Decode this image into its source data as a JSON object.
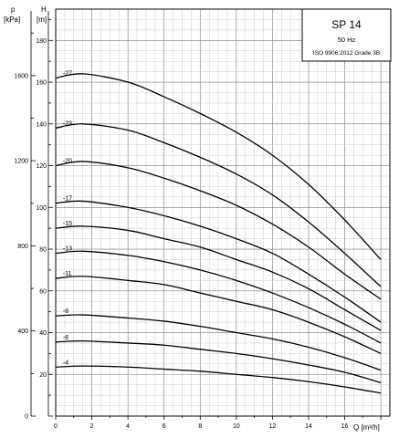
{
  "chart_data": {
    "type": "line",
    "title": "SP 14",
    "subtitle": "50 Hz",
    "standard": "ISO 9906:2012 Grade 3B",
    "xlabel": "Q [m³/h]",
    "ylabel_left_symbol": "p",
    "ylabel_left_unit": "[kPa]",
    "ylabel_right_symbol": "H",
    "ylabel_right_unit": "[m]",
    "xlim": [
      0,
      18.5
    ],
    "ylim_head": [
      0,
      195
    ],
    "x_ticks": [
      "0",
      "2",
      "4",
      "6",
      "8",
      "10",
      "12",
      "14",
      "16"
    ],
    "head_ticks": [
      "20",
      "40",
      "60",
      "80",
      "100",
      "120",
      "140",
      "160",
      "180"
    ],
    "pressure_ticks": [
      "0",
      "400",
      "800",
      "1200",
      "1600"
    ],
    "grid": true,
    "series": [
      {
        "name": "-27",
        "x": [
          0,
          1.5,
          4,
          6,
          8,
          10,
          12,
          14,
          16,
          18
        ],
        "y": [
          162,
          164,
          160,
          153,
          145,
          136,
          125,
          111,
          94,
          75
        ]
      },
      {
        "name": "-23",
        "x": [
          0,
          1.5,
          4,
          6,
          8,
          10,
          12,
          14,
          16,
          18
        ],
        "y": [
          138,
          140,
          137,
          131,
          124,
          116,
          106,
          93,
          78,
          62
        ]
      },
      {
        "name": "-20",
        "x": [
          0,
          1.5,
          4,
          6,
          8,
          10,
          12,
          14,
          16,
          18
        ],
        "y": [
          120,
          122,
          119,
          114,
          108,
          101,
          92,
          81,
          68,
          56
        ]
      },
      {
        "name": "-17",
        "x": [
          0,
          1.5,
          4,
          6,
          8,
          10,
          12,
          14,
          16,
          18
        ],
        "y": [
          102,
          103,
          100,
          96,
          91,
          85,
          78,
          68,
          57,
          45
        ]
      },
      {
        "name": "-15",
        "x": [
          0,
          1.5,
          4,
          6,
          8,
          10,
          12,
          14,
          16,
          18
        ],
        "y": [
          90,
          91,
          89,
          85,
          81,
          75,
          69,
          61,
          51,
          41
        ]
      },
      {
        "name": "-13",
        "x": [
          0,
          1.5,
          4,
          6,
          8,
          10,
          12,
          14,
          16,
          18
        ],
        "y": [
          78,
          79,
          77,
          74,
          70,
          65,
          59,
          52,
          44,
          35
        ]
      },
      {
        "name": "-11",
        "x": [
          0,
          1.5,
          4,
          6,
          8,
          10,
          12,
          14,
          16,
          18
        ],
        "y": [
          66,
          67,
          65,
          63,
          59,
          55,
          51,
          45,
          38,
          30
        ]
      },
      {
        "name": "-8",
        "x": [
          0,
          1.5,
          4,
          6,
          8,
          10,
          12,
          14,
          16,
          18
        ],
        "y": [
          48,
          48.5,
          47,
          45.5,
          43,
          40,
          37,
          33,
          28,
          22
        ]
      },
      {
        "name": "-6",
        "x": [
          0,
          1.5,
          4,
          6,
          8,
          10,
          12,
          14,
          16,
          18
        ],
        "y": [
          35.5,
          36,
          35,
          34,
          32,
          30,
          27.5,
          24.5,
          21,
          16
        ]
      },
      {
        "name": "-4",
        "x": [
          0,
          1.5,
          4,
          6,
          8,
          10,
          12,
          14,
          16,
          18
        ],
        "y": [
          23.5,
          24,
          23.5,
          22.5,
          21.5,
          20,
          18.5,
          16.5,
          14,
          11
        ]
      }
    ]
  }
}
